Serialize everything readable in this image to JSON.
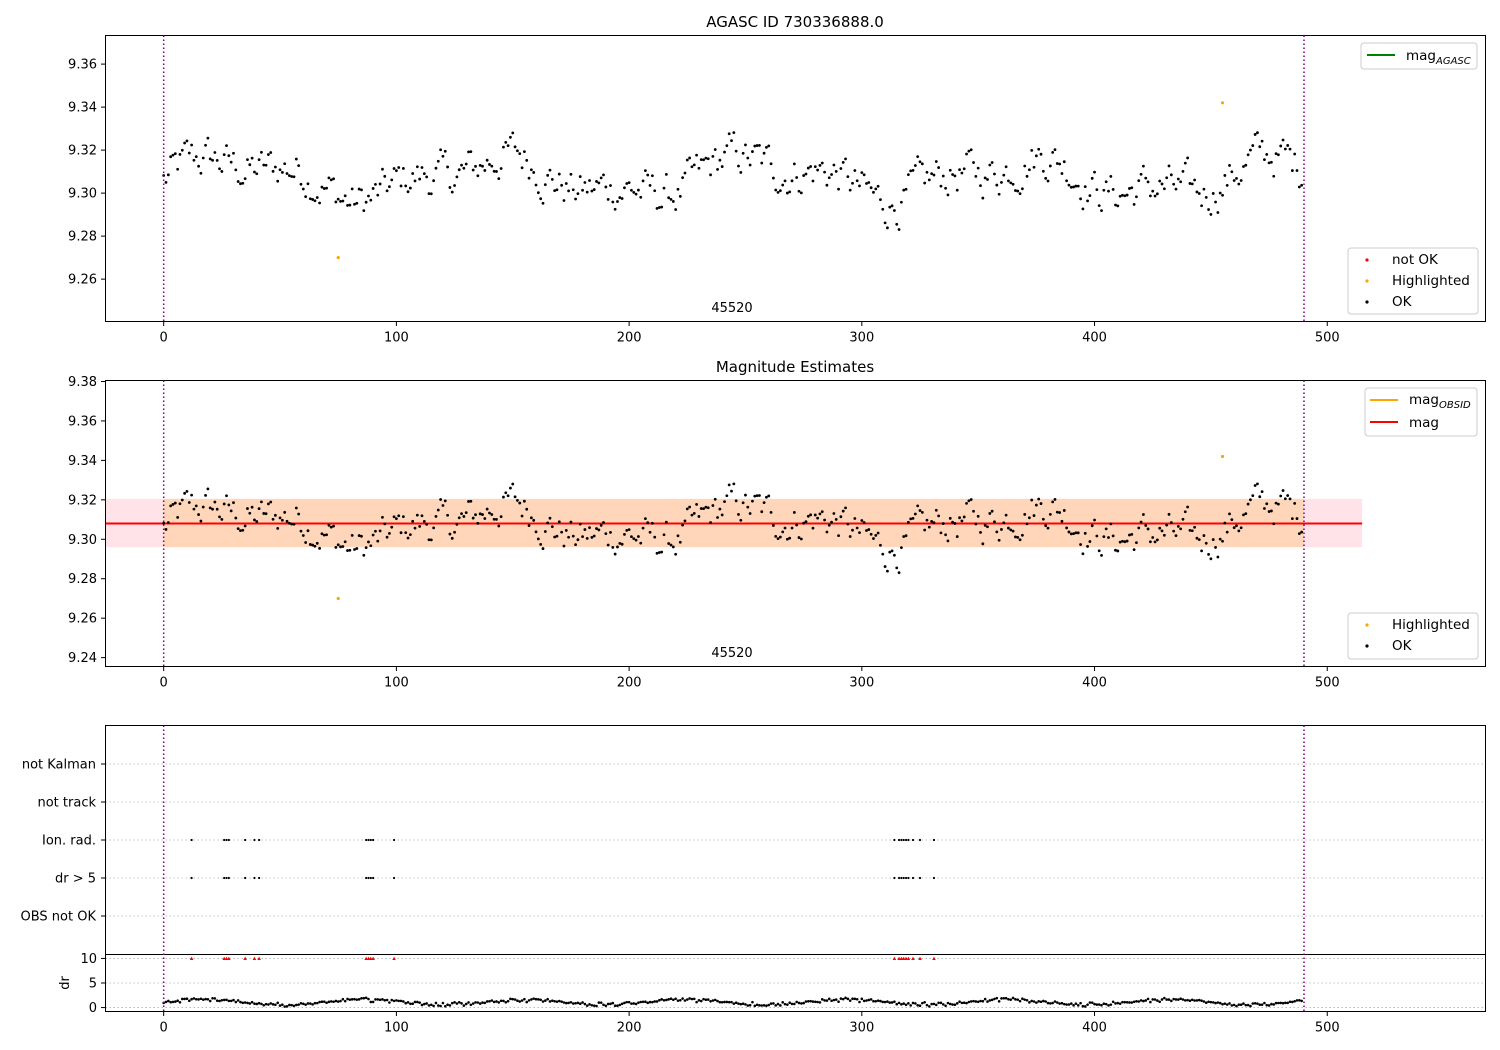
{
  "chart_data": [
    {
      "type": "scatter",
      "title": "AGASC ID 730336888.0",
      "xlim": [
        -25,
        568
      ],
      "ylim": [
        9.2403,
        9.3733
      ],
      "xticks": [
        0,
        100,
        200,
        300,
        400,
        500
      ],
      "yticks": [
        9.26,
        9.28,
        9.3,
        9.32,
        9.34,
        9.36
      ],
      "obsid_label": "45520",
      "obsid_boundaries": [
        0,
        490
      ],
      "legend_top": [
        {
          "label": "mag",
          "subscript": "AGASC",
          "color": "#008000",
          "kind": "line"
        }
      ],
      "legend_bottom": [
        {
          "label": "not OK",
          "color": "#ff0000",
          "kind": "marker"
        },
        {
          "label": "Highlighted",
          "color": "#ffa500",
          "kind": "marker"
        },
        {
          "label": "OK",
          "color": "#000000",
          "kind": "marker"
        }
      ],
      "highlighted_points": [
        {
          "x": 75,
          "y": 9.27
        },
        {
          "x": 455,
          "y": 9.342
        }
      ],
      "n_points": 490,
      "y_range_of_ok_points": [
        9.275,
        9.34
      ]
    },
    {
      "type": "scatter",
      "title": "Magnitude Estimates",
      "xlim": [
        -25,
        568
      ],
      "ylim": [
        9.2355,
        9.3805
      ],
      "xticks": [
        0,
        100,
        200,
        300,
        400,
        500
      ],
      "yticks": [
        9.24,
        9.26,
        9.28,
        9.3,
        9.32,
        9.34,
        9.36,
        9.38
      ],
      "obsid_label": "45520",
      "obsid_boundaries": [
        0,
        490
      ],
      "mag": 9.308,
      "mag_band": [
        9.296,
        9.3205
      ],
      "band_xrange": [
        -25,
        515
      ],
      "legend_top": [
        {
          "label": "mag",
          "subscript": "OBSID",
          "color": "#ffa500",
          "kind": "line"
        },
        {
          "label": "mag",
          "subscript": "",
          "color": "#ff0000",
          "kind": "line"
        }
      ],
      "legend_bottom": [
        {
          "label": "Highlighted",
          "color": "#ffa500",
          "kind": "marker"
        },
        {
          "label": "OK",
          "color": "#000000",
          "kind": "marker"
        }
      ],
      "highlighted_points": [
        {
          "x": 75,
          "y": 9.27
        },
        {
          "x": 455,
          "y": 9.342
        }
      ]
    },
    {
      "type": "scatter",
      "title": "",
      "xlim": [
        -25,
        568
      ],
      "xticks": [
        0,
        100,
        200,
        300,
        400,
        500
      ],
      "flag_rows": [
        "not Kalman",
        "not track",
        "Ion. rad.",
        "dr > 5",
        "OBS not OK"
      ],
      "flagged_x": [
        12,
        26,
        27,
        28,
        35,
        39,
        41,
        87,
        88,
        89,
        90,
        99,
        314,
        316,
        317,
        318,
        319,
        320,
        322,
        325,
        331
      ],
      "dr_subplot": {
        "ylabel": "dr",
        "yticks": [
          0,
          5,
          10
        ],
        "ylim": [
          -0.8,
          10.8
        ],
        "threshold": 10,
        "typical_range": [
          0.1,
          2.1
        ]
      },
      "obsid_boundaries": [
        0,
        490
      ]
    }
  ]
}
